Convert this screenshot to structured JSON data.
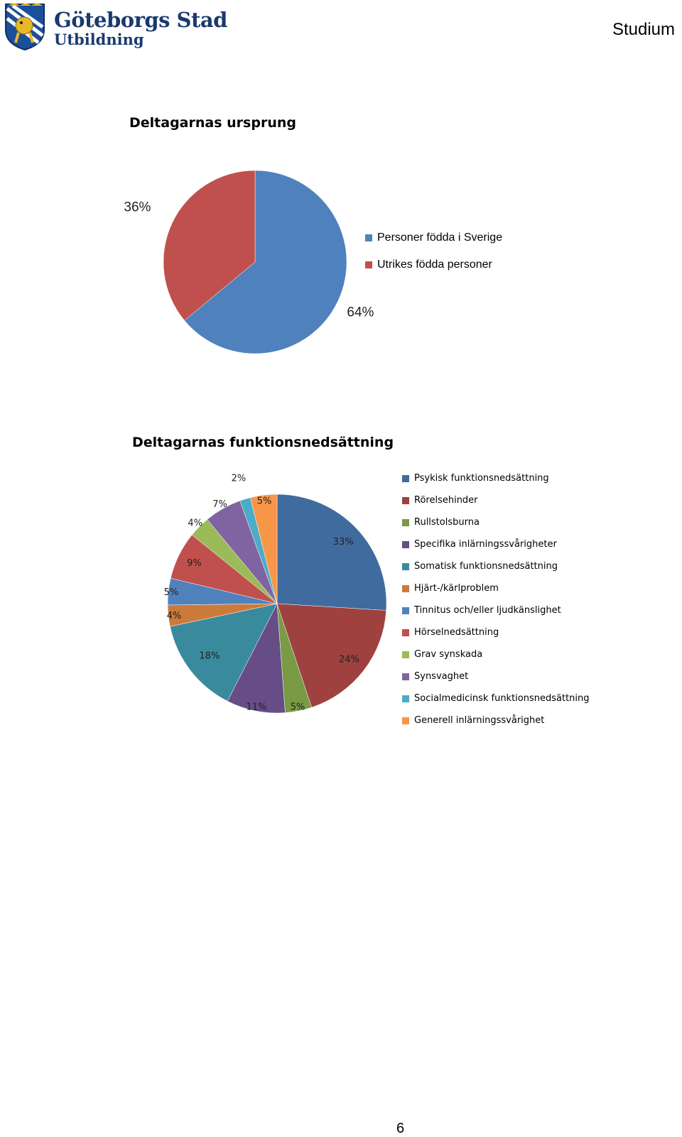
{
  "header": {
    "org_line1": "Göteborgs Stad",
    "org_line2": "Utbildning",
    "right_label": "Studium",
    "logo_icon": "coat-of-arms-lion-icon"
  },
  "page_number": "6",
  "chart_data": [
    {
      "type": "pie",
      "title": "Deltagarnas ursprung",
      "categories": [
        "Personer födda i Sverige",
        "Utrikes födda personer"
      ],
      "values": [
        64,
        36
      ],
      "labels": [
        "64%",
        "36%"
      ],
      "colors": [
        "#4f81bd",
        "#c0504d"
      ],
      "legend_position": "right"
    },
    {
      "type": "pie",
      "title": "Deltagarnas funktionsnedsättning",
      "categories": [
        "Psykisk funktionsnedsättning",
        "Rörelsehinder",
        "Rullstolsburna",
        "Specifika inlärningssvårigheter",
        "Somatisk funktionsnedsättning",
        "Hjärt-/kärlproblem",
        "Tinnitus och/eller ljudkänslighet",
        "Hörselnedsättning",
        "Grav synskada",
        "Synsvaghet",
        "Socialmedicinsk funktionsnedsättning",
        "Generell inlärningssvårighet"
      ],
      "values": [
        33,
        24,
        5,
        11,
        18,
        4,
        5,
        9,
        4,
        7,
        2,
        5
      ],
      "labels": [
        "33%",
        "24%",
        "5%",
        "11%",
        "18%",
        "4%",
        "5%",
        "9%",
        "4%",
        "7%",
        "2%",
        "5%"
      ],
      "colors": [
        "#406b9f",
        "#9e413f",
        "#7a9a45",
        "#664d86",
        "#3a8a9e",
        "#cc7a3a",
        "#4f81bd",
        "#c0504d",
        "#9bbb59",
        "#8064a2",
        "#4bacc6",
        "#f79646"
      ],
      "legend_position": "right"
    }
  ]
}
